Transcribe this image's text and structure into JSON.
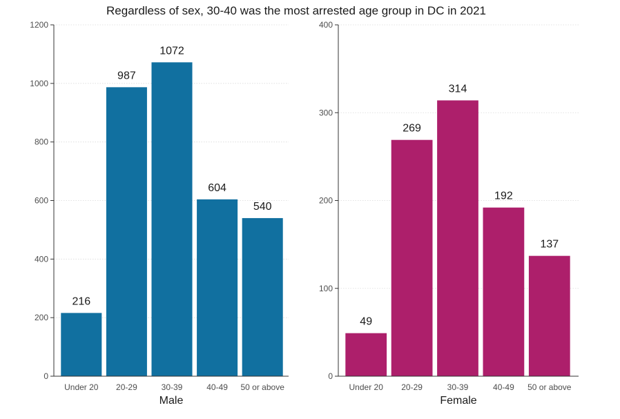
{
  "title": "Regardless of sex, 30-40 was the most arrested age group in DC in 2021",
  "colors": {
    "male": "#1170a0",
    "female": "#ad1f6b"
  },
  "chart_data": [
    {
      "type": "bar",
      "xlabel": "Male",
      "ylabel": "",
      "categories": [
        "Under 20",
        "20-29",
        "30-39",
        "40-49",
        "50 or above"
      ],
      "values": [
        216,
        987,
        1072,
        604,
        540
      ],
      "ylim": [
        0,
        1200
      ],
      "yticks": [
        0,
        200,
        400,
        600,
        800,
        1000,
        1200
      ],
      "grid": true,
      "color": "#1170a0"
    },
    {
      "type": "bar",
      "xlabel": "Female",
      "ylabel": "",
      "categories": [
        "Under 20",
        "20-29",
        "30-39",
        "40-49",
        "50 or above"
      ],
      "values": [
        49,
        269,
        314,
        192,
        137
      ],
      "ylim": [
        0,
        400
      ],
      "yticks": [
        0,
        100,
        200,
        300,
        400
      ],
      "grid": true,
      "color": "#ad1f6b"
    }
  ]
}
